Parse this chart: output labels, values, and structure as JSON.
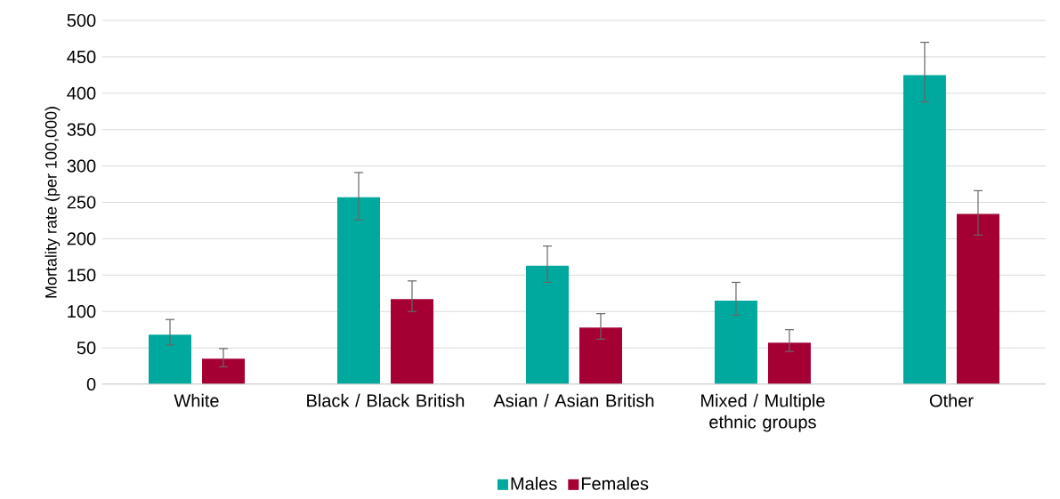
{
  "chart_data": {
    "type": "bar",
    "ylabel": "Mortality rate (per 100,000)",
    "categories": [
      "White",
      "Black / Black British",
      "Asian / Asian British",
      "Mixed / Multiple ethnic groups",
      "Other"
    ],
    "series": [
      {
        "name": "Males",
        "color": "#00a99d",
        "values": [
          68,
          257,
          163,
          115,
          425
        ],
        "errors": [
          [
            54,
            89
          ],
          [
            226,
            291
          ],
          [
            140,
            190
          ],
          [
            95,
            140
          ],
          [
            388,
            470
          ]
        ]
      },
      {
        "name": "Females",
        "color": "#a50034",
        "values": [
          35,
          117,
          78,
          57,
          234
        ],
        "errors": [
          [
            24,
            49
          ],
          [
            100,
            142
          ],
          [
            62,
            97
          ],
          [
            45,
            75
          ],
          [
            205,
            266
          ]
        ]
      }
    ],
    "ylim": [
      0,
      500
    ],
    "yticks": [
      0,
      50,
      100,
      150,
      200,
      250,
      300,
      350,
      400,
      450,
      500
    ],
    "grid": "y",
    "legend": "bottom"
  }
}
